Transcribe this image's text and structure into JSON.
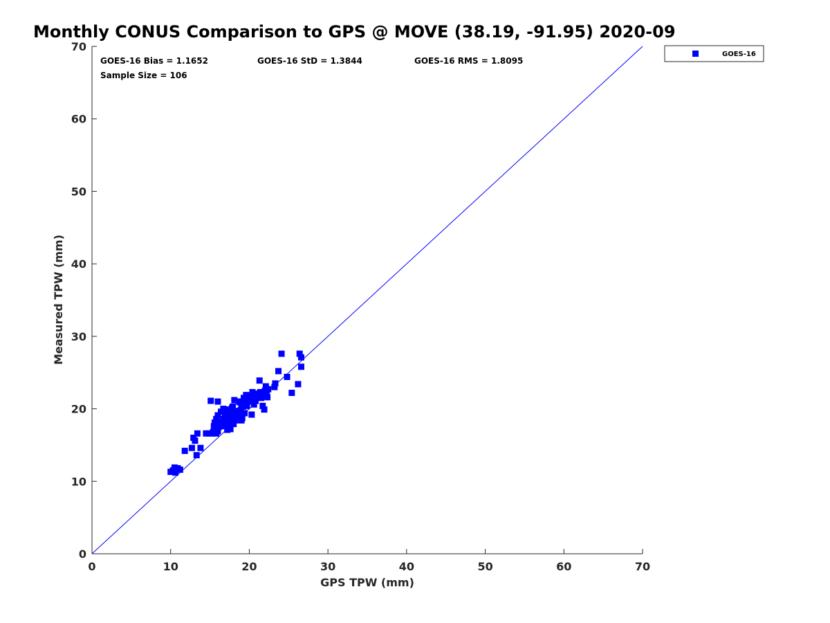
{
  "chart_data": {
    "type": "scatter",
    "title": "Monthly CONUS Comparison to GPS @ MOVE (38.19, -91.95) 2020-09",
    "xlabel": "GPS TPW (mm)",
    "ylabel": "Measured TPW (mm)",
    "xlim": [
      0,
      70
    ],
    "ylim": [
      0,
      70
    ],
    "xticks": [
      "0",
      "10",
      "20",
      "30",
      "40",
      "50",
      "60",
      "70"
    ],
    "yticks": [
      "0",
      "10",
      "20",
      "30",
      "40",
      "50",
      "60",
      "70"
    ],
    "grid": false,
    "legend_position": "top-right, outside plot",
    "reference_line": {
      "from": [
        0,
        0
      ],
      "to": [
        70,
        70
      ],
      "color": "#0000ff"
    },
    "stats": {
      "bias": "GOES-16 Bias = 1.1652",
      "std": "GOES-16 StD = 1.3844",
      "rms": "GOES-16 RMS = 1.8095",
      "sample_size": "Sample Size = 106"
    },
    "series": [
      {
        "name": "GOES-16",
        "color": "#0000ff",
        "marker": "square",
        "points": [
          [
            10.0,
            11.3
          ],
          [
            10.3,
            11.5
          ],
          [
            10.6,
            11.2
          ],
          [
            10.9,
            11.8
          ],
          [
            11.2,
            11.6
          ],
          [
            10.5,
            11.9
          ],
          [
            11.8,
            14.2
          ],
          [
            12.7,
            14.6
          ],
          [
            12.9,
            16.0
          ],
          [
            13.1,
            15.6
          ],
          [
            13.3,
            13.6
          ],
          [
            13.4,
            16.6
          ],
          [
            13.8,
            14.6
          ],
          [
            14.5,
            16.6
          ],
          [
            14.9,
            16.6
          ],
          [
            15.1,
            21.1
          ],
          [
            15.3,
            16.6
          ],
          [
            15.5,
            17.6
          ],
          [
            15.6,
            18.1
          ],
          [
            15.8,
            16.6
          ],
          [
            15.9,
            17.3
          ],
          [
            16.0,
            16.9
          ],
          [
            15.8,
            18.6
          ],
          [
            16.0,
            19.1
          ],
          [
            16.0,
            21.0
          ],
          [
            16.2,
            17.6
          ],
          [
            16.3,
            18.2
          ],
          [
            16.4,
            19.6
          ],
          [
            16.6,
            17.6
          ],
          [
            16.7,
            18.6
          ],
          [
            16.7,
            20.0
          ],
          [
            16.9,
            17.9
          ],
          [
            17.0,
            18.4
          ],
          [
            17.1,
            19.6
          ],
          [
            17.2,
            17.1
          ],
          [
            17.3,
            17.6
          ],
          [
            17.3,
            18.8
          ],
          [
            17.4,
            19.9
          ],
          [
            17.5,
            18.2
          ],
          [
            17.6,
            17.2
          ],
          [
            17.7,
            19.3
          ],
          [
            17.8,
            18.6
          ],
          [
            17.9,
            20.3
          ],
          [
            18.0,
            17.9
          ],
          [
            18.1,
            19.1
          ],
          [
            18.1,
            21.2
          ],
          [
            18.2,
            18.4
          ],
          [
            18.4,
            19.5
          ],
          [
            18.6,
            19.0
          ],
          [
            18.8,
            20.9
          ],
          [
            18.9,
            19.8
          ],
          [
            19.0,
            18.4
          ],
          [
            19.1,
            18.7
          ],
          [
            19.2,
            20.3
          ],
          [
            19.3,
            21.5
          ],
          [
            19.4,
            19.4
          ],
          [
            19.5,
            20.8
          ],
          [
            19.6,
            21.9
          ],
          [
            19.8,
            21.4
          ],
          [
            20.0,
            21.0
          ],
          [
            20.2,
            21.8
          ],
          [
            20.3,
            19.2
          ],
          [
            20.4,
            22.3
          ],
          [
            20.6,
            20.6
          ],
          [
            20.8,
            21.1
          ],
          [
            21.0,
            21.6
          ],
          [
            21.1,
            22.1
          ],
          [
            21.3,
            23.9
          ],
          [
            21.5,
            21.5
          ],
          [
            21.7,
            20.4
          ],
          [
            21.8,
            21.8
          ],
          [
            21.9,
            19.9
          ],
          [
            22.0,
            22.5
          ],
          [
            22.1,
            23.1
          ],
          [
            22.3,
            21.6
          ],
          [
            22.4,
            22.7
          ],
          [
            23.2,
            23.0
          ],
          [
            23.3,
            23.5
          ],
          [
            23.7,
            25.2
          ],
          [
            24.1,
            27.6
          ],
          [
            24.8,
            24.4
          ],
          [
            25.4,
            22.2
          ],
          [
            26.2,
            23.4
          ],
          [
            26.4,
            27.6
          ],
          [
            26.6,
            27.1
          ],
          [
            26.6,
            25.8
          ],
          [
            16.5,
            18.0
          ],
          [
            17.6,
            18.9
          ],
          [
            18.5,
            19.7
          ],
          [
            19.7,
            20.4
          ],
          [
            16.9,
            19.2
          ],
          [
            17.8,
            20.1
          ],
          [
            15.7,
            17.1
          ],
          [
            20.7,
            22.0
          ],
          [
            18.7,
            21.0
          ],
          [
            16.1,
            17.5
          ],
          [
            17.2,
            18.0
          ],
          [
            19.0,
            20.6
          ],
          [
            21.4,
            22.3
          ],
          [
            15.4,
            16.8
          ],
          [
            18.3,
            18.9
          ],
          [
            16.8,
            17.8
          ],
          [
            20.1,
            21.2
          ],
          [
            17.7,
            18.4
          ],
          [
            19.6,
            21.7
          ],
          [
            22.2,
            21.9
          ]
        ]
      }
    ]
  }
}
